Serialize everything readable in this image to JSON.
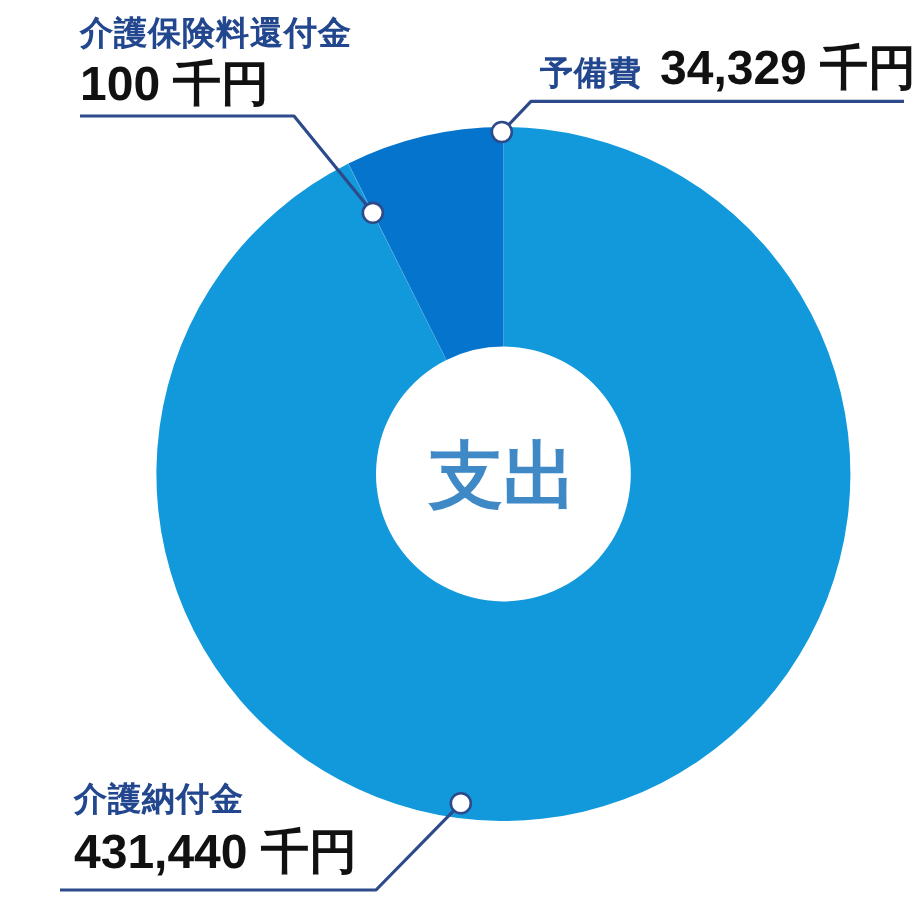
{
  "chart_data": {
    "type": "donut",
    "title": "支出",
    "categories": [
      "介護納付金",
      "介護保険料還付金",
      "予備費"
    ],
    "values": [
      431440,
      100,
      34329
    ],
    "colors": [
      "#1299dc",
      "#1299dc",
      "#0474cc"
    ],
    "value_labels": [
      "431,440 千円",
      "100 千円",
      "34,329 千円"
    ]
  }
}
